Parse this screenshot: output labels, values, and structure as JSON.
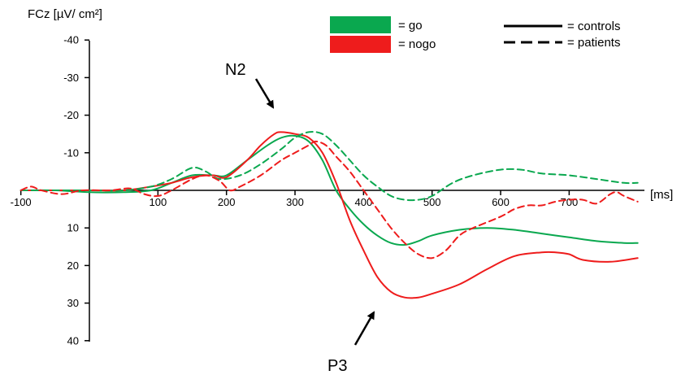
{
  "chart_data": {
    "type": "line",
    "ylabel": "FCz  [µV/ cm²]",
    "xlabel": "[ms]",
    "xlim": [
      -100,
      800
    ],
    "ylim": [
      -40,
      40
    ],
    "y_inverted": true,
    "x_ticks": [
      -100,
      100,
      200,
      300,
      400,
      500,
      600,
      700
    ],
    "x_tick_labels": [
      "-100",
      "100",
      "200",
      "300",
      "400",
      "500",
      "600",
      "700"
    ],
    "y_ticks": [
      -40,
      -30,
      -20,
      -10,
      10,
      20,
      30,
      40
    ],
    "y_tick_labels": [
      "-40",
      "-30",
      "-20",
      "-10",
      "10",
      "20",
      "30",
      "40"
    ],
    "grid": false,
    "legend": {
      "colors": [
        {
          "label": "= go",
          "color": "#0aa84f"
        },
        {
          "label": "= nogo",
          "color": "#ee1c1c"
        }
      ],
      "styles": [
        {
          "label": "= controls",
          "dash": "solid"
        },
        {
          "label": "= patients",
          "dash": "dashed"
        }
      ]
    },
    "annotations": [
      {
        "text": "N2"
      },
      {
        "text": "P3"
      }
    ],
    "series": [
      {
        "condition": "go",
        "group": "controls",
        "color": "#0aa84f",
        "dash": "solid",
        "points": [
          [
            -100,
            0
          ],
          [
            -50,
            0
          ],
          [
            0,
            0.5
          ],
          [
            50,
            0.5
          ],
          [
            90,
            0
          ],
          [
            120,
            -2
          ],
          [
            150,
            -4
          ],
          [
            180,
            -4
          ],
          [
            200,
            -4
          ],
          [
            230,
            -8
          ],
          [
            260,
            -12
          ],
          [
            280,
            -14
          ],
          [
            300,
            -14.5
          ],
          [
            320,
            -13
          ],
          [
            340,
            -8
          ],
          [
            360,
            0
          ],
          [
            380,
            5
          ],
          [
            400,
            9
          ],
          [
            420,
            12
          ],
          [
            440,
            14
          ],
          [
            460,
            14.5
          ],
          [
            480,
            13.5
          ],
          [
            500,
            12
          ],
          [
            540,
            10.5
          ],
          [
            580,
            10
          ],
          [
            620,
            10.5
          ],
          [
            660,
            11.5
          ],
          [
            700,
            12.5
          ],
          [
            740,
            13.5
          ],
          [
            780,
            14
          ],
          [
            800,
            14
          ]
        ]
      },
      {
        "condition": "nogo",
        "group": "controls",
        "color": "#ee1c1c",
        "dash": "solid",
        "points": [
          [
            -100,
            0
          ],
          [
            -50,
            0
          ],
          [
            0,
            0
          ],
          [
            50,
            0
          ],
          [
            90,
            -1
          ],
          [
            120,
            -2
          ],
          [
            150,
            -3.5
          ],
          [
            180,
            -4
          ],
          [
            200,
            -3.5
          ],
          [
            230,
            -8
          ],
          [
            250,
            -12
          ],
          [
            270,
            -15
          ],
          [
            280,
            -15.5
          ],
          [
            300,
            -15
          ],
          [
            320,
            -14
          ],
          [
            340,
            -10
          ],
          [
            360,
            -2
          ],
          [
            380,
            8
          ],
          [
            400,
            16
          ],
          [
            420,
            23
          ],
          [
            440,
            27
          ],
          [
            460,
            28.5
          ],
          [
            480,
            28.5
          ],
          [
            500,
            27.5
          ],
          [
            540,
            25
          ],
          [
            580,
            21
          ],
          [
            620,
            17.5
          ],
          [
            660,
            16.5
          ],
          [
            680,
            16.5
          ],
          [
            700,
            17
          ],
          [
            720,
            18.5
          ],
          [
            760,
            19
          ],
          [
            800,
            18
          ]
        ]
      },
      {
        "condition": "go",
        "group": "patients",
        "color": "#0aa84f",
        "dash": "dashed",
        "points": [
          [
            -100,
            0
          ],
          [
            -50,
            0
          ],
          [
            0,
            0
          ],
          [
            50,
            0
          ],
          [
            90,
            -1
          ],
          [
            120,
            -3
          ],
          [
            150,
            -6
          ],
          [
            170,
            -5
          ],
          [
            190,
            -3
          ],
          [
            220,
            -4
          ],
          [
            250,
            -7
          ],
          [
            280,
            -11
          ],
          [
            300,
            -14
          ],
          [
            320,
            -15.5
          ],
          [
            340,
            -15
          ],
          [
            360,
            -12
          ],
          [
            380,
            -8
          ],
          [
            400,
            -4
          ],
          [
            420,
            -1
          ],
          [
            440,
            1.5
          ],
          [
            460,
            2.5
          ],
          [
            480,
            2.5
          ],
          [
            500,
            1.5
          ],
          [
            530,
            -2
          ],
          [
            560,
            -4
          ],
          [
            600,
            -5.5
          ],
          [
            630,
            -5.5
          ],
          [
            660,
            -4.5
          ],
          [
            700,
            -4
          ],
          [
            740,
            -3
          ],
          [
            780,
            -2
          ],
          [
            800,
            -2
          ]
        ]
      },
      {
        "condition": "nogo",
        "group": "patients",
        "color": "#ee1c1c",
        "dash": "dashed",
        "points": [
          [
            -100,
            0
          ],
          [
            -85,
            -1
          ],
          [
            -70,
            0
          ],
          [
            -40,
            1
          ],
          [
            -10,
            0
          ],
          [
            30,
            0
          ],
          [
            60,
            -0.5
          ],
          [
            80,
            1
          ],
          [
            100,
            1.5
          ],
          [
            120,
            0
          ],
          [
            150,
            -3
          ],
          [
            170,
            -4
          ],
          [
            190,
            -2.5
          ],
          [
            205,
            0
          ],
          [
            220,
            -1
          ],
          [
            250,
            -4
          ],
          [
            280,
            -8
          ],
          [
            300,
            -10
          ],
          [
            320,
            -12
          ],
          [
            330,
            -13
          ],
          [
            345,
            -12
          ],
          [
            360,
            -9
          ],
          [
            380,
            -5
          ],
          [
            400,
            0
          ],
          [
            420,
            5
          ],
          [
            440,
            10
          ],
          [
            460,
            14
          ],
          [
            480,
            17
          ],
          [
            500,
            18
          ],
          [
            520,
            16
          ],
          [
            540,
            12
          ],
          [
            560,
            10
          ],
          [
            600,
            7
          ],
          [
            620,
            5
          ],
          [
            640,
            4
          ],
          [
            660,
            4
          ],
          [
            680,
            3
          ],
          [
            700,
            2.5
          ],
          [
            720,
            2.5
          ],
          [
            740,
            3.5
          ],
          [
            760,
            1
          ],
          [
            770,
            0.5
          ],
          [
            780,
            1.5
          ],
          [
            800,
            3
          ]
        ]
      }
    ]
  }
}
